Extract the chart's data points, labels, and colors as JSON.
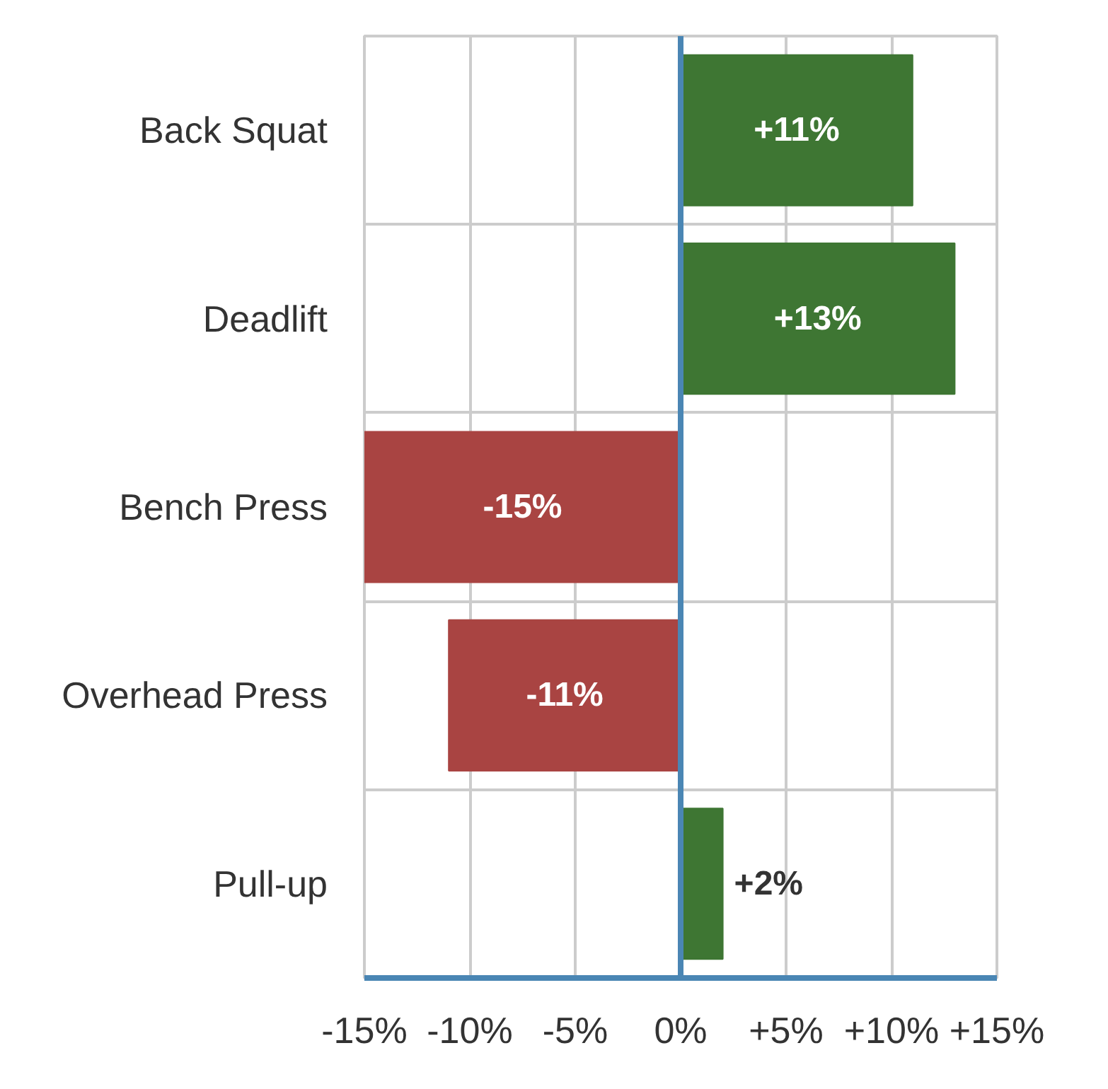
{
  "chart_data": {
    "type": "bar",
    "orientation": "horizontal",
    "categories": [
      "Back Squat",
      "Deadlift",
      "Bench Press",
      "Overhead Press",
      "Pull-up"
    ],
    "values": [
      11,
      13,
      -15,
      -11,
      2
    ],
    "colors": [
      "#3e7633",
      "#3e7633",
      "#a94442",
      "#a94442",
      "#3e7633"
    ],
    "value_labels": [
      "+11%",
      "+13%",
      "-15%",
      "-11%",
      "+2%"
    ],
    "xlim": [
      -15,
      15
    ],
    "xticks": [
      {
        "value": -15,
        "label": "-15%"
      },
      {
        "value": -10,
        "label": "-10%"
      },
      {
        "value": -5,
        "label": "-5%"
      },
      {
        "value": 0,
        "label": "0%"
      },
      {
        "value": 5,
        "label": "+5%"
      },
      {
        "value": 10,
        "label": "+10%"
      },
      {
        "value": 15,
        "label": "+15%"
      }
    ],
    "grid": true,
    "ref_lines": [
      {
        "axis": "x",
        "value": 0,
        "color": "#4a86b4"
      }
    ]
  }
}
